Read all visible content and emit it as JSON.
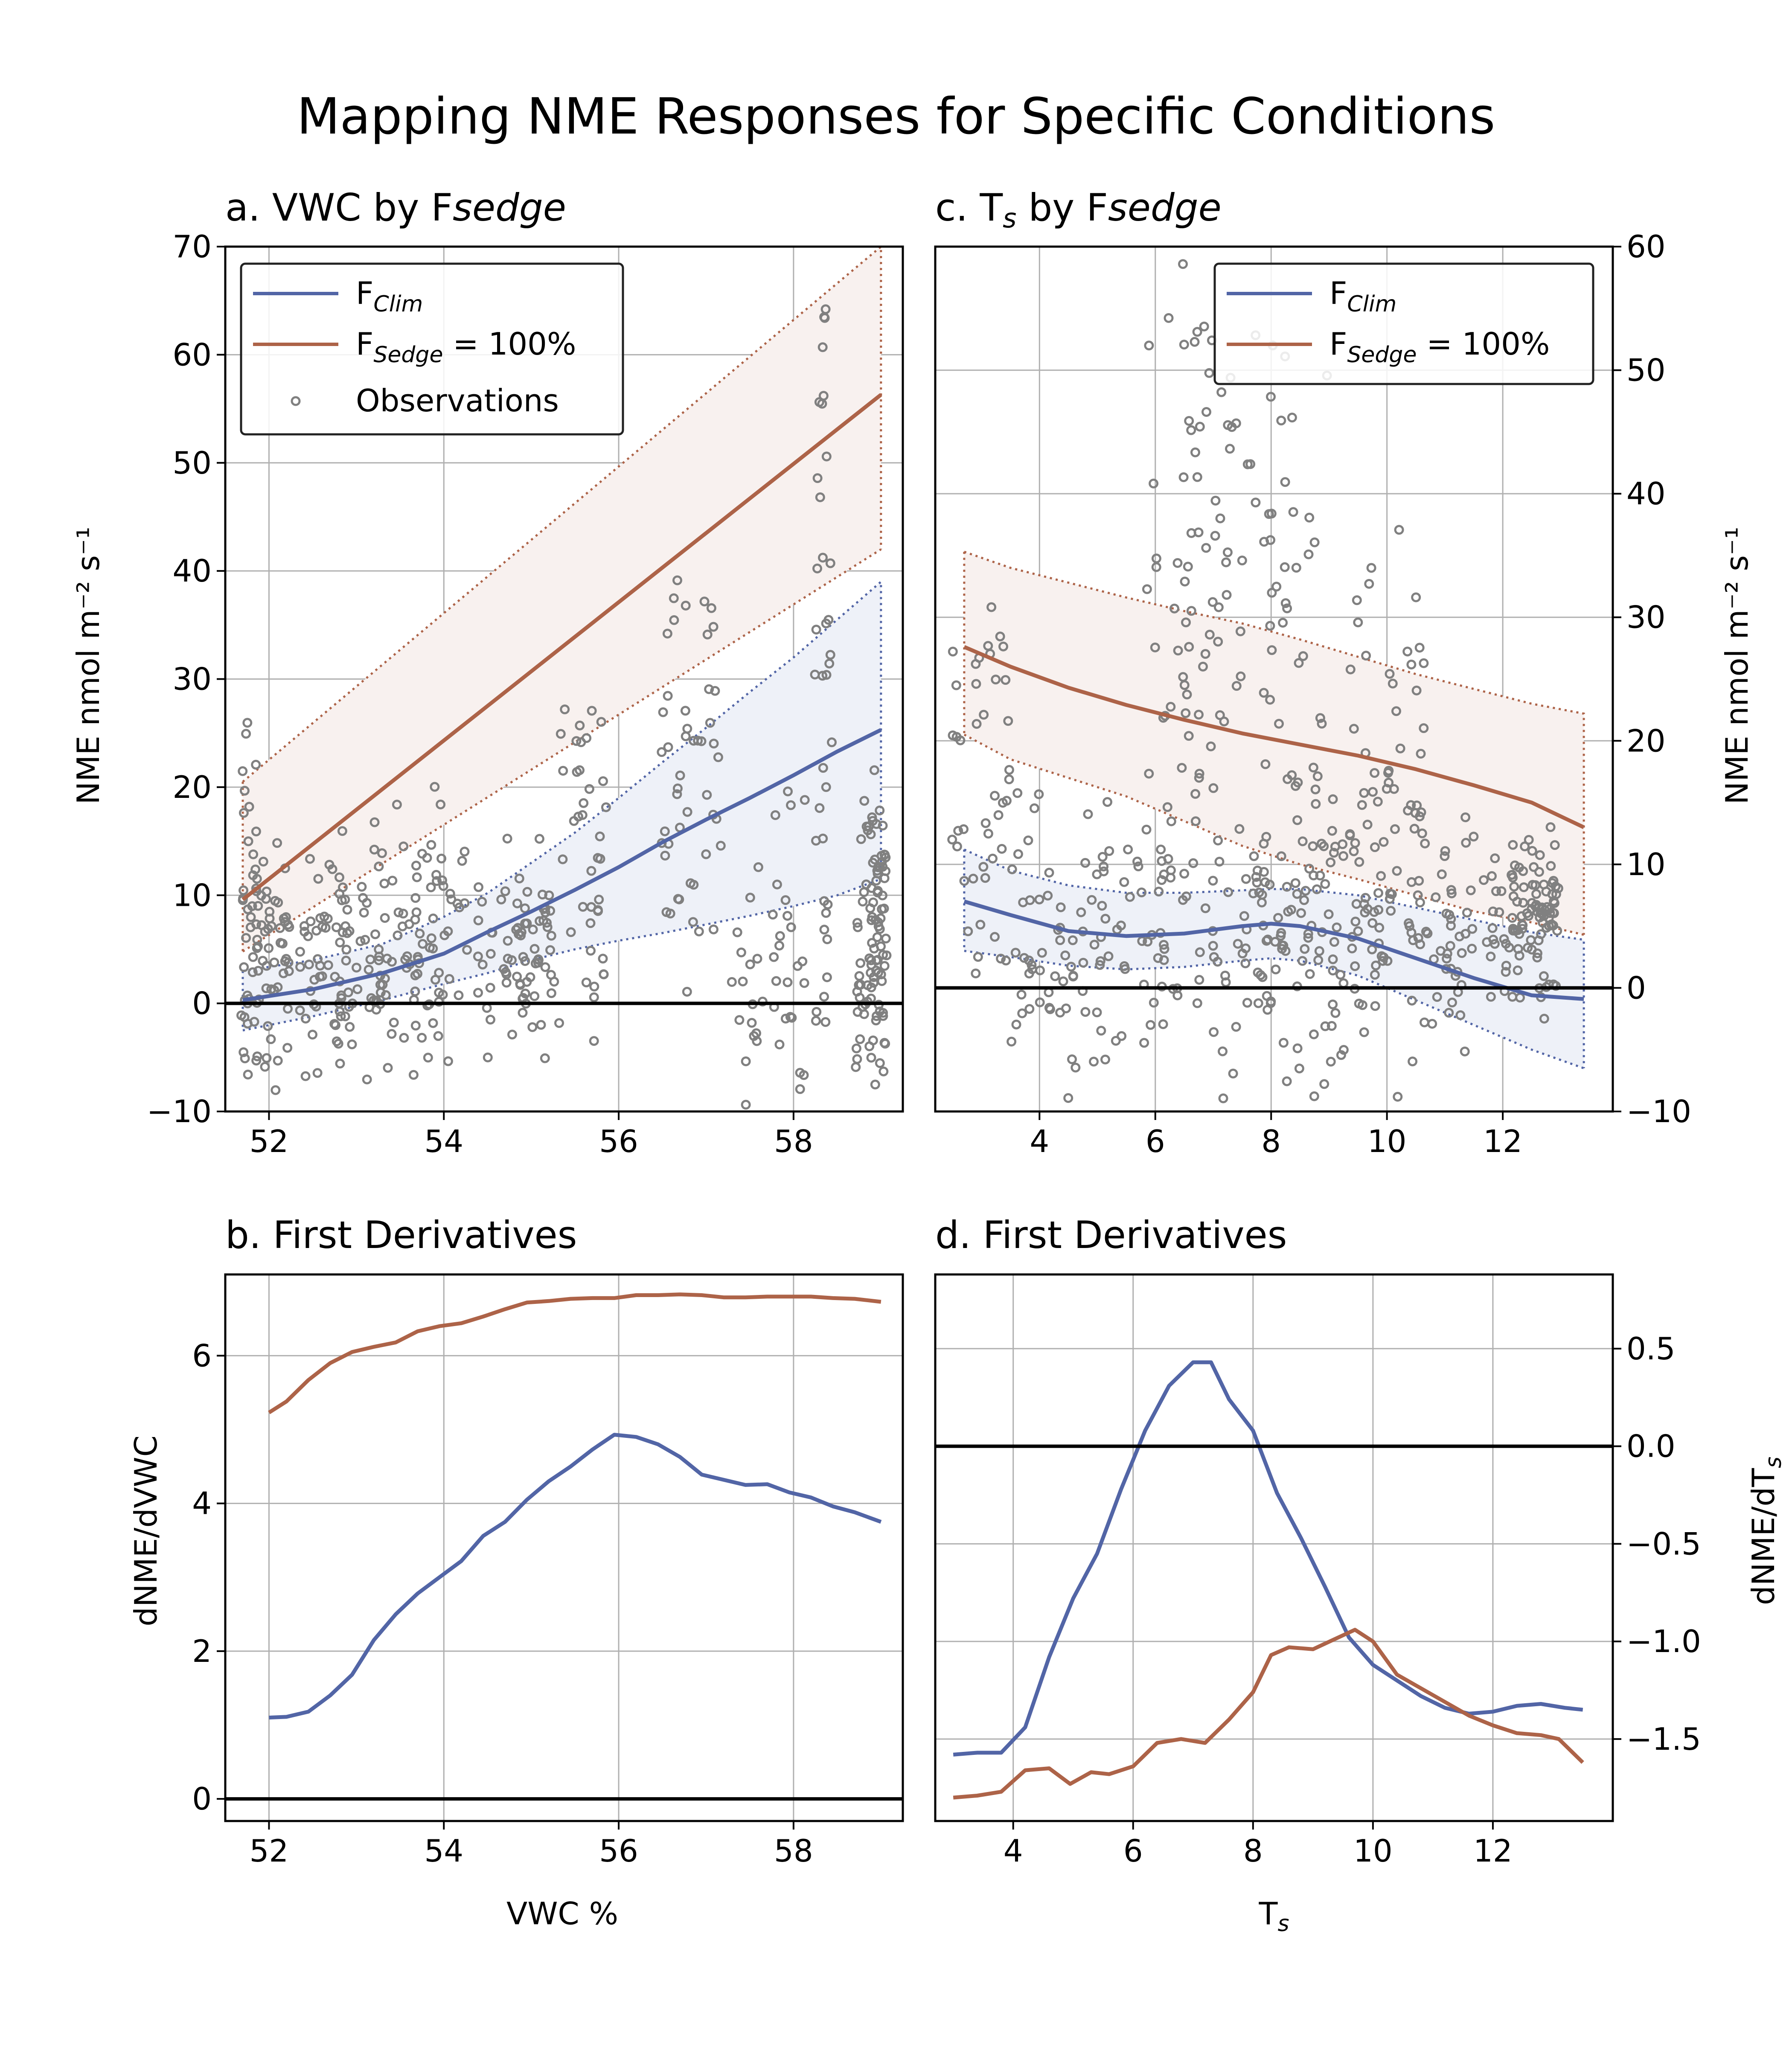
{
  "figure": {
    "title": "Mapping NME Responses for Specific Conditions"
  },
  "colors": {
    "clim": "#5265a6",
    "sedge": "#ad6348",
    "obs": "#808080",
    "grid": "#b0b0b0",
    "band_clim": "#eef1f8",
    "band_sedge": "#f8f1ef"
  },
  "chart_data": [
    {
      "id": "a",
      "type": "line",
      "title": "a. VWC by Fsedge",
      "title_parts": [
        "a. VWC by F",
        "sedge"
      ],
      "xlabel": "",
      "ylabel": "NME nmol m⁻² s⁻¹",
      "xlim": [
        51.5,
        59.25
      ],
      "ylim": [
        -10,
        70
      ],
      "xticks": [
        52,
        54,
        56,
        58
      ],
      "yticks": [
        -10,
        0,
        10,
        20,
        30,
        40,
        50,
        60,
        70
      ],
      "grid": true,
      "legend": {
        "location": "top-left",
        "entries": [
          {
            "label_main": "F",
            "label_sub": "Clim",
            "label_tail": "",
            "kind": "line",
            "color": "clim"
          },
          {
            "label_main": "F",
            "label_sub": "Sedge",
            "label_tail": " = 100%",
            "kind": "line",
            "color": "sedge"
          },
          {
            "label_main": "Observations",
            "label_sub": "",
            "label_tail": "",
            "kind": "marker",
            "color": "obs"
          }
        ]
      },
      "series": [
        {
          "name": "FClim",
          "color": "clim",
          "x": [
            51.7,
            52.5,
            53.3,
            54.0,
            54.5,
            55.0,
            55.5,
            56.0,
            56.5,
            57.0,
            57.5,
            58.0,
            58.5,
            59.0
          ],
          "y": [
            0.3,
            1.3,
            2.8,
            4.6,
            6.6,
            8.5,
            10.5,
            12.6,
            14.9,
            17.0,
            19.0,
            21.1,
            23.3,
            25.3
          ],
          "lower": [
            -2.5,
            -1.2,
            0.3,
            1.8,
            2.8,
            4.0,
            5.0,
            5.8,
            6.5,
            7.3,
            8.1,
            9.0,
            10.0,
            11.5
          ],
          "upper": [
            3.0,
            4.0,
            5.5,
            8.0,
            10.2,
            13.0,
            15.8,
            19.0,
            22.3,
            25.5,
            28.8,
            32.0,
            35.5,
            39.0
          ]
        },
        {
          "name": "FSedge = 100%",
          "color": "sedge",
          "x": [
            51.7,
            59.0
          ],
          "y": [
            9.6,
            56.3
          ],
          "lower": [
            4.8,
            42.0
          ],
          "upper": [
            20.5,
            70.0
          ]
        }
      ],
      "observations": {
        "name": "Observations",
        "color": "obs"
      }
    },
    {
      "id": "b",
      "type": "line",
      "title": "b. First Derivatives",
      "xlabel": "VWC %",
      "ylabel": "dNME/dVWC",
      "xlim": [
        51.5,
        59.25
      ],
      "ylim": [
        -0.3,
        7.1
      ],
      "xticks": [
        52,
        54,
        56,
        58
      ],
      "yticks": [
        0,
        2,
        4,
        6
      ],
      "grid": true,
      "series": [
        {
          "name": "FClim",
          "color": "clim",
          "x": [
            52.0,
            52.2,
            52.45,
            52.7,
            52.95,
            53.2,
            53.45,
            53.7,
            53.95,
            54.2,
            54.45,
            54.7,
            54.95,
            55.2,
            55.45,
            55.7,
            55.95,
            56.2,
            56.45,
            56.7,
            56.95,
            57.2,
            57.45,
            57.7,
            57.95,
            58.2,
            58.45,
            58.7,
            59.0
          ],
          "y": [
            1.1,
            1.11,
            1.18,
            1.4,
            1.68,
            2.15,
            2.5,
            2.78,
            3.0,
            3.22,
            3.56,
            3.75,
            4.05,
            4.3,
            4.5,
            4.73,
            4.93,
            4.9,
            4.8,
            4.63,
            4.39,
            4.32,
            4.25,
            4.26,
            4.15,
            4.08,
            3.96,
            3.88,
            3.75
          ]
        },
        {
          "name": "FSedge = 100%",
          "color": "sedge",
          "x": [
            52.0,
            52.2,
            52.45,
            52.7,
            52.95,
            53.2,
            53.45,
            53.7,
            53.95,
            54.2,
            54.45,
            54.7,
            54.95,
            55.2,
            55.45,
            55.7,
            55.95,
            56.2,
            56.45,
            56.7,
            56.95,
            57.2,
            57.45,
            57.7,
            57.95,
            58.2,
            58.45,
            58.7,
            59.0
          ],
          "y": [
            5.23,
            5.38,
            5.67,
            5.9,
            6.05,
            6.12,
            6.18,
            6.33,
            6.4,
            6.44,
            6.53,
            6.63,
            6.72,
            6.74,
            6.77,
            6.78,
            6.78,
            6.82,
            6.82,
            6.83,
            6.82,
            6.79,
            6.79,
            6.8,
            6.8,
            6.8,
            6.78,
            6.77,
            6.73
          ]
        }
      ]
    },
    {
      "id": "c",
      "type": "line",
      "title": "c. Ts by Fsedge",
      "title_parts": [
        "c. T",
        "s",
        " by F",
        "sedge"
      ],
      "xlabel": "",
      "ylabel": "NME nmol m⁻² s⁻¹",
      "xlim": [
        2.2,
        13.9
      ],
      "ylim": [
        -10,
        60
      ],
      "xticks": [
        4,
        6,
        8,
        10,
        12
      ],
      "yticks": [
        -10,
        0,
        10,
        20,
        30,
        40,
        50,
        60
      ],
      "grid": true,
      "legend": {
        "location": "top-right",
        "entries": [
          {
            "label_main": "F",
            "label_sub": "Clim",
            "label_tail": "",
            "kind": "line",
            "color": "clim"
          },
          {
            "label_main": "F",
            "label_sub": "Sedge",
            "label_tail": " = 100%",
            "kind": "line",
            "color": "sedge"
          }
        ]
      },
      "series": [
        {
          "name": "FClim",
          "color": "clim",
          "x": [
            2.7,
            3.5,
            4.5,
            5.5,
            6.5,
            7.5,
            8.0,
            8.5,
            9.5,
            10.5,
            11.5,
            12.5,
            13.4
          ],
          "y": [
            7.0,
            5.9,
            4.6,
            4.2,
            4.4,
            5.0,
            5.2,
            5.0,
            4.0,
            2.4,
            0.8,
            -0.6,
            -0.9
          ],
          "lower": [
            3.0,
            2.5,
            1.8,
            1.5,
            1.7,
            2.2,
            2.4,
            2.2,
            1.0,
            -1.0,
            -3.0,
            -5.0,
            -6.5
          ],
          "upper": [
            11.2,
            9.5,
            8.3,
            7.7,
            7.7,
            7.9,
            8.0,
            8.0,
            7.5,
            6.5,
            5.5,
            4.5,
            3.9
          ]
        },
        {
          "name": "FSedge = 100%",
          "color": "sedge",
          "x": [
            2.7,
            3.5,
            4.5,
            5.5,
            6.5,
            7.5,
            8.5,
            9.5,
            10.5,
            11.5,
            12.5,
            13.4
          ],
          "y": [
            27.6,
            26.0,
            24.3,
            22.9,
            21.7,
            20.6,
            19.7,
            18.8,
            17.7,
            16.4,
            15.0,
            13.0
          ],
          "lower": [
            20.5,
            18.5,
            17.0,
            15.5,
            13.5,
            11.5,
            10.0,
            8.8,
            7.5,
            6.2,
            5.3,
            4.3
          ],
          "upper": [
            35.3,
            34.0,
            32.8,
            31.6,
            30.5,
            29.5,
            28.2,
            26.8,
            25.4,
            24.2,
            23.0,
            22.2
          ]
        }
      ]
    },
    {
      "id": "d",
      "type": "line",
      "title": "d. First Derivatives",
      "xlabel": "Ts",
      "xlabel_parts": [
        "T",
        "s"
      ],
      "ylabel": "dNME/dTs",
      "ylabel_parts": [
        "dNME/dT",
        "s"
      ],
      "xlim": [
        2.7,
        14.0
      ],
      "ylim": [
        -1.92,
        0.88
      ],
      "xticks": [
        4,
        6,
        8,
        10,
        12
      ],
      "yticks": [
        -1.5,
        -1.0,
        -0.5,
        0.0,
        0.5
      ],
      "ytick_labels": [
        "−1.5",
        "−1.0",
        "−0.5",
        "0.0",
        "0.5"
      ],
      "grid": true,
      "series": [
        {
          "name": "FClim",
          "color": "clim",
          "x": [
            3.0,
            3.4,
            3.8,
            4.2,
            4.6,
            5.0,
            5.4,
            5.8,
            6.2,
            6.6,
            7.0,
            7.3,
            7.6,
            8.0,
            8.4,
            8.8,
            9.2,
            9.6,
            10.0,
            10.4,
            10.8,
            11.2,
            11.6,
            12.0,
            12.4,
            12.8,
            13.2,
            13.5
          ],
          "y": [
            -1.58,
            -1.57,
            -1.57,
            -1.44,
            -1.08,
            -0.78,
            -0.55,
            -0.22,
            0.08,
            0.31,
            0.43,
            0.43,
            0.24,
            0.08,
            -0.24,
            -0.47,
            -0.72,
            -0.98,
            -1.12,
            -1.2,
            -1.28,
            -1.34,
            -1.37,
            -1.36,
            -1.33,
            -1.32,
            -1.34,
            -1.35
          ]
        },
        {
          "name": "FSedge = 100%",
          "color": "sedge",
          "x": [
            3.0,
            3.4,
            3.8,
            4.2,
            4.6,
            4.95,
            5.3,
            5.6,
            6.0,
            6.4,
            6.8,
            7.2,
            7.6,
            8.0,
            8.3,
            8.6,
            9.0,
            9.35,
            9.7,
            10.0,
            10.4,
            10.8,
            11.2,
            11.6,
            12.0,
            12.4,
            12.8,
            13.1,
            13.5
          ],
          "y": [
            -1.8,
            -1.79,
            -1.77,
            -1.66,
            -1.65,
            -1.73,
            -1.67,
            -1.68,
            -1.64,
            -1.52,
            -1.5,
            -1.52,
            -1.4,
            -1.26,
            -1.07,
            -1.03,
            -1.04,
            -0.99,
            -0.94,
            -1.0,
            -1.17,
            -1.24,
            -1.31,
            -1.38,
            -1.43,
            -1.47,
            -1.48,
            -1.5,
            -1.62
          ]
        }
      ]
    }
  ]
}
